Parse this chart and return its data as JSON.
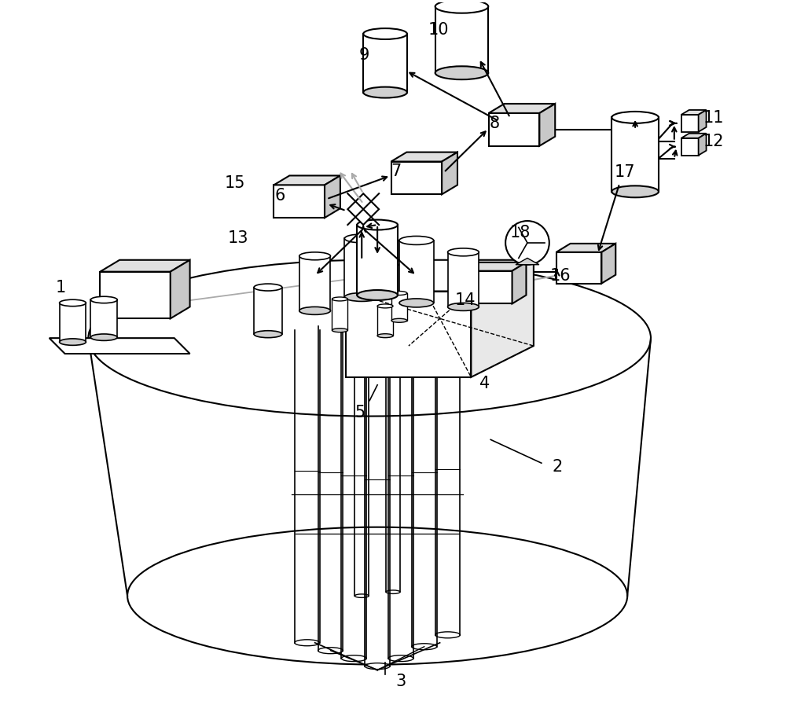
{
  "bg": "#ffffff",
  "lc": "#000000",
  "gc": "#aaaaaa",
  "lw": 1.5,
  "figsize": [
    10.0,
    9.11
  ],
  "dpi": 100
}
